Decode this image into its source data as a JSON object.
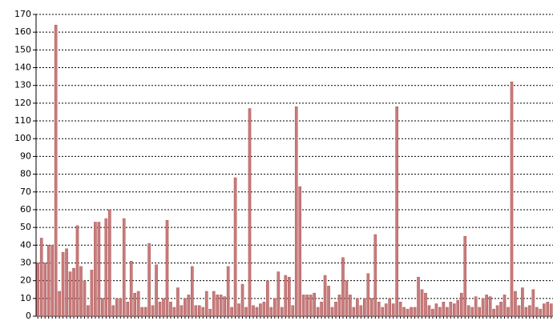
{
  "chart_data": {
    "type": "bar",
    "color": "#c97b7b",
    "grid": true,
    "ylim": [
      0,
      170
    ],
    "yticks": [
      0,
      10,
      20,
      30,
      40,
      50,
      60,
      70,
      80,
      90,
      100,
      110,
      120,
      130,
      140,
      150,
      160,
      170
    ],
    "values": [
      30,
      44,
      30,
      40,
      40,
      164,
      14,
      36,
      38,
      25,
      27,
      51,
      28,
      20,
      6,
      26,
      53,
      53,
      10,
      55,
      60,
      6,
      10,
      10,
      55,
      8,
      31,
      13,
      14,
      5,
      5,
      41,
      6,
      29,
      8,
      10,
      54,
      8,
      5,
      16,
      6,
      10,
      12,
      28,
      6,
      6,
      5,
      14,
      4,
      14,
      12,
      12,
      11,
      28,
      5,
      78,
      7,
      18,
      5,
      117,
      6,
      5,
      7,
      8,
      20,
      5,
      10,
      25,
      5,
      23,
      22,
      6,
      118,
      73,
      12,
      12,
      12,
      13,
      5,
      8,
      23,
      17,
      5,
      8,
      12,
      33,
      20,
      12,
      5,
      10,
      6,
      10,
      24,
      10,
      46,
      8,
      5,
      7,
      10,
      7,
      118,
      8,
      5,
      4,
      5,
      5,
      22,
      15,
      13,
      6,
      4,
      7,
      5,
      8,
      5,
      8,
      7,
      9,
      13,
      45,
      6,
      5,
      11,
      5,
      10,
      12,
      11,
      4,
      6,
      8,
      12,
      5,
      132,
      14,
      6,
      16,
      5,
      6,
      15,
      5,
      4,
      7,
      8,
      7
    ]
  }
}
